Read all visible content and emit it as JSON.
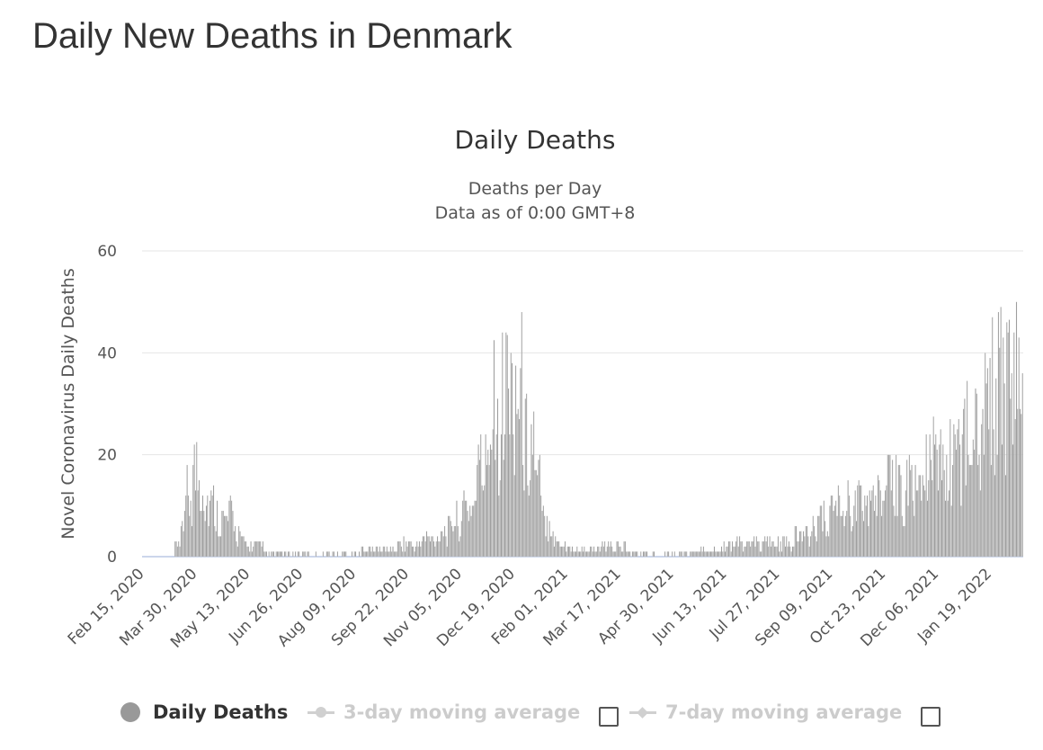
{
  "page": {
    "title": "Daily New Deaths in Denmark"
  },
  "colors": {
    "bar": "#999999",
    "grid": "#e6e6e6",
    "axis": "#ccd6eb",
    "legend_inactive": "#cccccc"
  },
  "legend": {
    "daily_deaths": "Daily Deaths",
    "avg3": "3-day moving average",
    "avg7": "7-day moving average"
  },
  "chart_data": {
    "type": "bar",
    "title": "Daily Deaths",
    "subtitle_line1": "Deaths per Day",
    "subtitle_line2": "Data as of 0:00 GMT+8",
    "ylabel": "Novel Coronavirus Daily Deaths",
    "xlabel": "",
    "ylim": [
      0,
      60
    ],
    "yticks": [
      0,
      20,
      40,
      60
    ],
    "grid": true,
    "legend_position": "bottom",
    "x_start": "Feb 15, 2020",
    "x_end": "Feb 16, 2022",
    "xtick_labels": [
      "Feb 15, 2020",
      "Mar 30, 2020",
      "May 13, 2020",
      "Jun 26, 2020",
      "Aug 09, 2020",
      "Sep 22, 2020",
      "Nov 05, 2020",
      "Dec 19, 2020",
      "Feb 01, 2021",
      "Mar 17, 2021",
      "Apr 30, 2021",
      "Jun 13, 2021",
      "Jul 27, 2021",
      "Sep 09, 2021",
      "Oct 23, 2021",
      "Dec 06, 2021",
      "Jan 19, 2022"
    ],
    "day_interval": 44,
    "series_name": "Daily Deaths",
    "values_approx_by_day_from_feb15_2020": {
      "segments": [
        {
          "from": 0,
          "to": 26,
          "level": 0
        },
        {
          "from": 27,
          "to": 31,
          "level": 2
        },
        {
          "from": 32,
          "to": 36,
          "level": 8
        },
        {
          "from": 37,
          "to": 41,
          "level": 12
        },
        {
          "from": 42,
          "to": 46,
          "level": 17
        },
        {
          "from": 47,
          "to": 51,
          "level": 15
        },
        {
          "from": 52,
          "to": 56,
          "level": 11
        },
        {
          "from": 57,
          "to": 61,
          "level": 10
        },
        {
          "from": 62,
          "to": 66,
          "level": 8
        },
        {
          "from": 67,
          "to": 71,
          "level": 7
        },
        {
          "from": 72,
          "to": 76,
          "level": 8
        },
        {
          "from": 77,
          "to": 81,
          "level": 5
        },
        {
          "from": 82,
          "to": 86,
          "level": 3
        },
        {
          "from": 87,
          "to": 101,
          "level": 2
        },
        {
          "from": 102,
          "to": 131,
          "level": 0.5
        },
        {
          "from": 132,
          "to": 181,
          "level": 0.5
        },
        {
          "from": 182,
          "to": 211,
          "level": 1.5
        },
        {
          "from": 212,
          "to": 231,
          "level": 2.5
        },
        {
          "from": 232,
          "to": 246,
          "level": 3.5
        },
        {
          "from": 247,
          "to": 256,
          "level": 5
        },
        {
          "from": 257,
          "to": 266,
          "level": 7
        },
        {
          "from": 267,
          "to": 276,
          "level": 10
        },
        {
          "from": 277,
          "to": 286,
          "level": 17
        },
        {
          "from": 287,
          "to": 296,
          "level": 26
        },
        {
          "from": 297,
          "to": 306,
          "level": 31
        },
        {
          "from": 307,
          "to": 316,
          "level": 32
        },
        {
          "from": 317,
          "to": 326,
          "level": 22
        },
        {
          "from": 327,
          "to": 331,
          "level": 14
        },
        {
          "from": 332,
          "to": 341,
          "level": 7
        },
        {
          "from": 342,
          "to": 351,
          "level": 3
        },
        {
          "from": 352,
          "to": 381,
          "level": 1.5
        },
        {
          "from": 382,
          "to": 401,
          "level": 2
        },
        {
          "from": 402,
          "to": 431,
          "level": 0.8
        },
        {
          "from": 432,
          "to": 461,
          "level": 0.6
        },
        {
          "from": 462,
          "to": 481,
          "level": 1.2
        },
        {
          "from": 482,
          "to": 501,
          "level": 2.5
        },
        {
          "from": 502,
          "to": 521,
          "level": 2.5
        },
        {
          "from": 522,
          "to": 541,
          "level": 2.5
        },
        {
          "from": 542,
          "to": 556,
          "level": 4
        },
        {
          "from": 557,
          "to": 571,
          "level": 7
        },
        {
          "from": 572,
          "to": 586,
          "level": 10
        },
        {
          "from": 587,
          "to": 601,
          "level": 10
        },
        {
          "from": 602,
          "to": 616,
          "level": 11
        },
        {
          "from": 617,
          "to": 631,
          "level": 13
        },
        {
          "from": 632,
          "to": 646,
          "level": 14
        },
        {
          "from": 647,
          "to": 661,
          "level": 16
        },
        {
          "from": 662,
          "to": 676,
          "level": 18
        },
        {
          "from": 677,
          "to": 691,
          "level": 22
        },
        {
          "from": 692,
          "to": 702,
          "level": 28
        },
        {
          "from": 703,
          "to": 731,
          "level": 33
        }
      ],
      "peaks": [
        {
          "day": 45,
          "value": 22.5
        },
        {
          "day": 292,
          "value": 42.5
        },
        {
          "day": 303,
          "value": 43.5
        },
        {
          "day": 310,
          "value": 37.5
        },
        {
          "day": 325,
          "value": 28.5
        },
        {
          "day": 657,
          "value": 27.5
        },
        {
          "day": 685,
          "value": 34.5
        },
        {
          "day": 715,
          "value": 43
        },
        {
          "day": 720,
          "value": 46.5
        }
      ]
    }
  }
}
